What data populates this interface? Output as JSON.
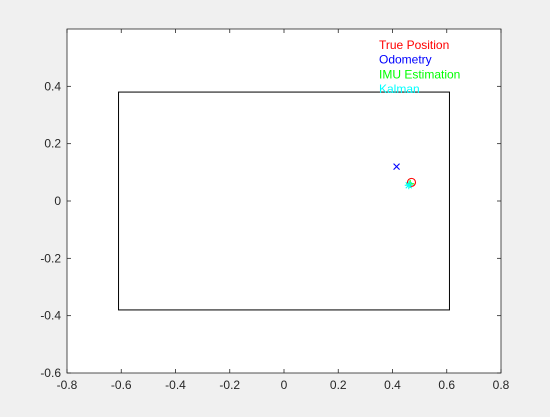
{
  "chart_data": {
    "type": "scatter",
    "title": "",
    "xlabel": "",
    "ylabel": "",
    "xlim": [
      -0.8,
      0.8
    ],
    "ylim": [
      -0.6,
      0.6
    ],
    "xticks": [
      "-0.8",
      "-0.6",
      "-0.4",
      "-0.2",
      "0",
      "0.2",
      "0.4",
      "0.6",
      "0.8"
    ],
    "yticks": [
      "-0.6",
      "-0.4",
      "-0.2",
      "0",
      "0.2",
      "0.4"
    ],
    "grid": false,
    "boundary_rectangle": {
      "x": [
        -0.61,
        0.61
      ],
      "y": [
        -0.38,
        0.38
      ],
      "color": "#000000"
    },
    "legend": {
      "placement": "top-right",
      "entries": [
        {
          "label": "True Position",
          "color": "#ff0000"
        },
        {
          "label": "Odometry",
          "color": "#0000ff"
        },
        {
          "label": "IMU Estimation",
          "color": "#00ff00"
        },
        {
          "label": "Kalman",
          "color": "#00ffff"
        }
      ]
    },
    "series": [
      {
        "name": "True Position",
        "marker": "circle",
        "color": "#ff0000",
        "points": [
          [
            0.47,
            0.065
          ]
        ]
      },
      {
        "name": "Odometry",
        "marker": "x",
        "color": "#0000ff",
        "points": [
          [
            0.415,
            0.12
          ]
        ]
      },
      {
        "name": "IMU Estimation",
        "marker": "plus",
        "color": "#00ff00",
        "points": [
          [
            0.465,
            0.06
          ]
        ]
      },
      {
        "name": "Kalman",
        "marker": "star",
        "color": "#00ffff",
        "points": [
          [
            0.46,
            0.055
          ]
        ]
      }
    ]
  }
}
